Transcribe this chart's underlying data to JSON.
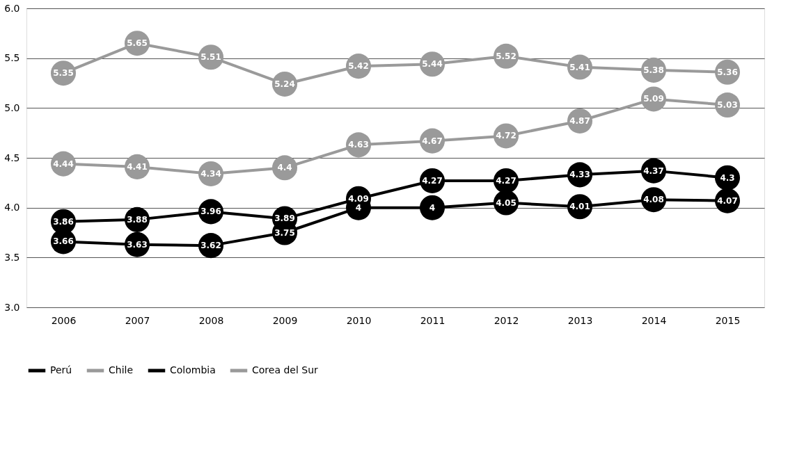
{
  "chart_data": {
    "type": "line",
    "categories": [
      "2006",
      "2007",
      "2008",
      "2009",
      "2010",
      "2011",
      "2012",
      "2013",
      "2014",
      "2015"
    ],
    "series": [
      {
        "name": "Perú",
        "color": "#000000",
        "values": [
          3.86,
          3.88,
          3.96,
          3.89,
          4.09,
          4.27,
          4.27,
          4.33,
          4.37,
          4.3
        ]
      },
      {
        "name": "Chile",
        "color": "#9a9a9a",
        "values": [
          4.44,
          4.41,
          4.34,
          4.4,
          4.63,
          4.67,
          4.72,
          4.87,
          5.09,
          5.03
        ]
      },
      {
        "name": "Colombia",
        "color": "#000000",
        "values": [
          3.66,
          3.63,
          3.62,
          3.75,
          4,
          4,
          4.05,
          4.01,
          4.08,
          4.07
        ]
      },
      {
        "name": "Corea del Sur",
        "color": "#9a9a9a",
        "values": [
          5.35,
          5.65,
          5.51,
          5.24,
          5.42,
          5.44,
          5.52,
          5.41,
          5.38,
          5.36
        ]
      }
    ],
    "ylim": [
      3,
      6
    ],
    "yticks": [
      {
        "value": 3,
        "label": "3.0"
      },
      {
        "value": 3.5,
        "label": "3.5"
      },
      {
        "value": 4,
        "label": "4.0"
      },
      {
        "value": 4.5,
        "label": "4.5"
      },
      {
        "value": 5,
        "label": "5.0"
      },
      {
        "value": 5.5,
        "label": "5.5"
      },
      {
        "value": 6,
        "label": "6.0"
      }
    ],
    "grid": "y",
    "legend": "bottom",
    "marker": "circle",
    "line_style": "solid",
    "data_labels": true
  }
}
